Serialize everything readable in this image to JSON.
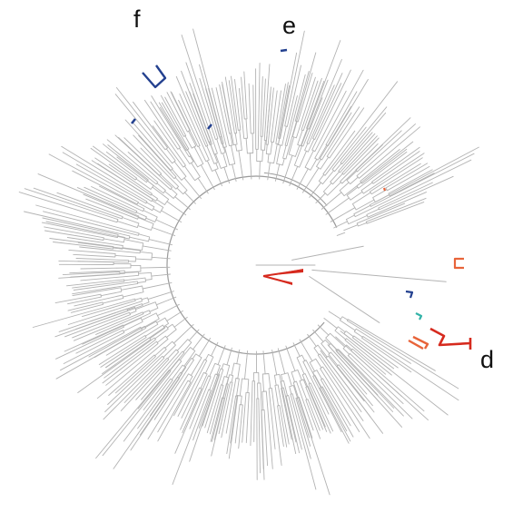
{
  "figure": {
    "panel_labels": [
      "f",
      "e",
      "d"
    ],
    "colors": {
      "branch": "#b3b3b3",
      "backbone": "#9a9a9a",
      "red": "#d62a1e",
      "orange": "#e8643a",
      "blue": "#23408f",
      "teal": "#33b3a8",
      "text": "#111111"
    }
  }
}
